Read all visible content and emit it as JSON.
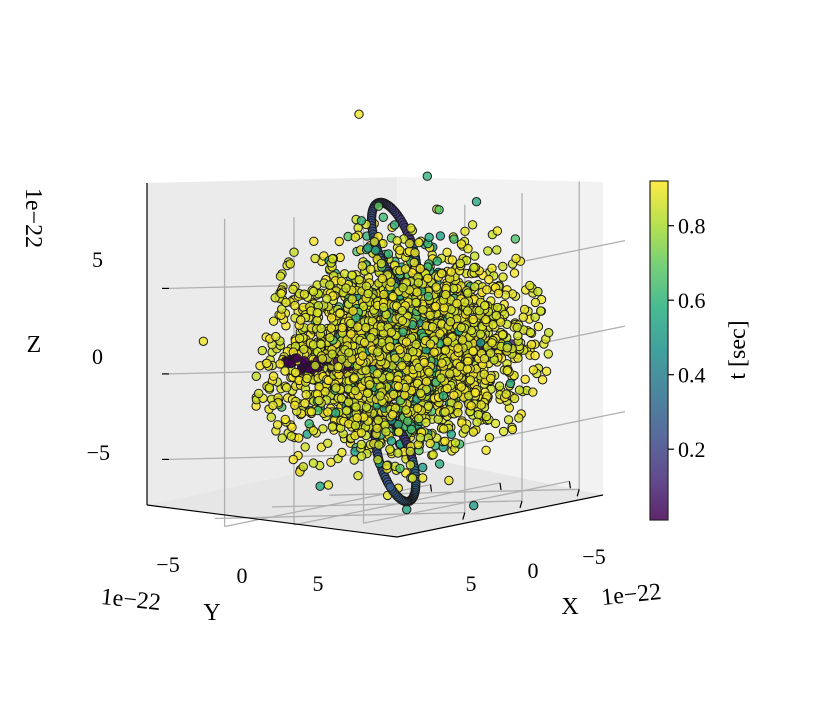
{
  "chart_data": {
    "type": "scatter",
    "projection": "3d",
    "title": "",
    "xlabel": "X",
    "ylabel": "Y",
    "zlabel": "Z",
    "x_offset_text": "1e−22",
    "y_offset_text": "1e−22",
    "z_offset_text": "1e−22",
    "x_ticks": [
      "−5",
      "0",
      "5"
    ],
    "y_ticks": [
      "−5",
      "0",
      "5"
    ],
    "z_ticks": [
      "−5",
      "0",
      "5"
    ],
    "xlim": [
      -9,
      9
    ],
    "ylim": [
      -9,
      9
    ],
    "zlim": [
      -9,
      9
    ],
    "grid": true,
    "colormap": "viridis",
    "colorbar": {
      "label": "t [sec]",
      "range": [
        0.01,
        0.92
      ],
      "ticks": [
        "0.2",
        "0.4",
        "0.6",
        "0.8"
      ],
      "tick_values": [
        0.2,
        0.4,
        0.6,
        0.8
      ]
    },
    "marker_alpha": 0.8,
    "marker_edgecolor": "#1a1a1a",
    "point_count_approx": 3000,
    "structures": [
      {
        "name": "early-time horizontal streak",
        "t_range": [
          0.0,
          0.08
        ],
        "description": "points along y near z = 0 spanning Y from -8 to +8"
      },
      {
        "name": "top loop",
        "t_range": [
          0.15,
          0.35
        ],
        "description": "elliptical ring of points above centre, z from 3 to 9"
      },
      {
        "name": "bottom loop",
        "t_range": [
          0.15,
          0.35
        ],
        "description": "elliptical ring of points below centre, z from -9 to -4"
      },
      {
        "name": "mid-time cloud",
        "t_range": [
          0.5,
          0.7
        ],
        "description": "points concentrated near centre"
      },
      {
        "name": "late-time cloud",
        "t_range": [
          0.8,
          0.92
        ],
        "description": "dense spherical cloud radius about 6 with sparse outliers"
      }
    ]
  }
}
